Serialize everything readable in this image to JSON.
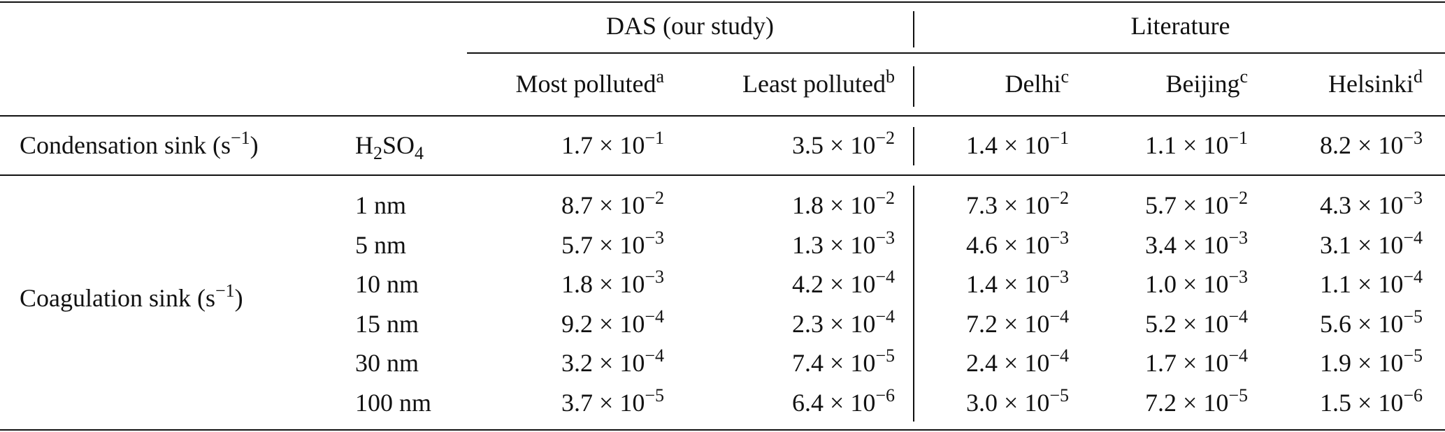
{
  "header": {
    "group_das": "DAS (our study)",
    "group_lit": "Literature",
    "columns": [
      {
        "label": "Most polluted",
        "sup": "a"
      },
      {
        "label": "Least polluted",
        "sup": "b"
      },
      {
        "label": "Delhi",
        "sup": "c"
      },
      {
        "label": "Beijing",
        "sup": "c"
      },
      {
        "label": "Helsinki",
        "sup": "d"
      }
    ]
  },
  "condensation": {
    "label": "Condensation sink (s",
    "unit_exp": "−1",
    "label_close": ")",
    "species_main": "H",
    "species_sub1": "2",
    "species_mid": "SO",
    "species_sub2": "4",
    "values": [
      {
        "m": "1.7",
        "e": "−1"
      },
      {
        "m": "3.5",
        "e": "−2"
      },
      {
        "m": "1.4",
        "e": "−1"
      },
      {
        "m": "1.1",
        "e": "−1"
      },
      {
        "m": "8.2",
        "e": "−3"
      }
    ]
  },
  "coagulation": {
    "label": "Coagulation sink (s",
    "unit_exp": "−1",
    "label_close": ")",
    "rows": [
      {
        "size": "1 nm",
        "values": [
          {
            "m": "8.7",
            "e": "−2"
          },
          {
            "m": "1.8",
            "e": "−2"
          },
          {
            "m": "7.3",
            "e": "−2"
          },
          {
            "m": "5.7",
            "e": "−2"
          },
          {
            "m": "4.3",
            "e": "−3"
          }
        ]
      },
      {
        "size": "5 nm",
        "values": [
          {
            "m": "5.7",
            "e": "−3"
          },
          {
            "m": "1.3",
            "e": "−3"
          },
          {
            "m": "4.6",
            "e": "−3"
          },
          {
            "m": "3.4",
            "e": "−3"
          },
          {
            "m": "3.1",
            "e": "−4"
          }
        ]
      },
      {
        "size": "10 nm",
        "values": [
          {
            "m": "1.8",
            "e": "−3"
          },
          {
            "m": "4.2",
            "e": "−4"
          },
          {
            "m": "1.4",
            "e": "−3"
          },
          {
            "m": "1.0",
            "e": "−3"
          },
          {
            "m": "1.1",
            "e": "−4"
          }
        ]
      },
      {
        "size": "15 nm",
        "values": [
          {
            "m": "9.2",
            "e": "−4"
          },
          {
            "m": "2.3",
            "e": "−4"
          },
          {
            "m": "7.2",
            "e": "−4"
          },
          {
            "m": "5.2",
            "e": "−4"
          },
          {
            "m": "5.6",
            "e": "−5"
          }
        ]
      },
      {
        "size": "30 nm",
        "values": [
          {
            "m": "3.2",
            "e": "−4"
          },
          {
            "m": "7.4",
            "e": "−5"
          },
          {
            "m": "2.4",
            "e": "−4"
          },
          {
            "m": "1.7",
            "e": "−4"
          },
          {
            "m": "1.9",
            "e": "−5"
          }
        ]
      },
      {
        "size": "100 nm",
        "values": [
          {
            "m": "3.7",
            "e": "−5"
          },
          {
            "m": "6.4",
            "e": "−6"
          },
          {
            "m": "3.0",
            "e": "−5"
          },
          {
            "m": "7.2",
            "e": "−5"
          },
          {
            "m": "1.5",
            "e": "−6"
          }
        ]
      }
    ]
  },
  "times_symbol": "× 10"
}
